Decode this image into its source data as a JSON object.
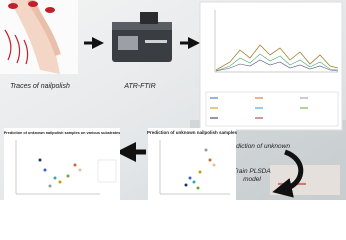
{
  "steps": [
    {
      "label": "Traces of nailpolish"
    },
    {
      "label": "ATR-FTIR"
    },
    {
      "label": "Prediction of unknown"
    },
    {
      "label": "Train PLSDA model"
    }
  ],
  "panels": [
    {
      "title": "Prediction of unknown nailpolish samples"
    },
    {
      "title": "Prediction of unknown nailpolish samples on various substrates"
    }
  ]
}
